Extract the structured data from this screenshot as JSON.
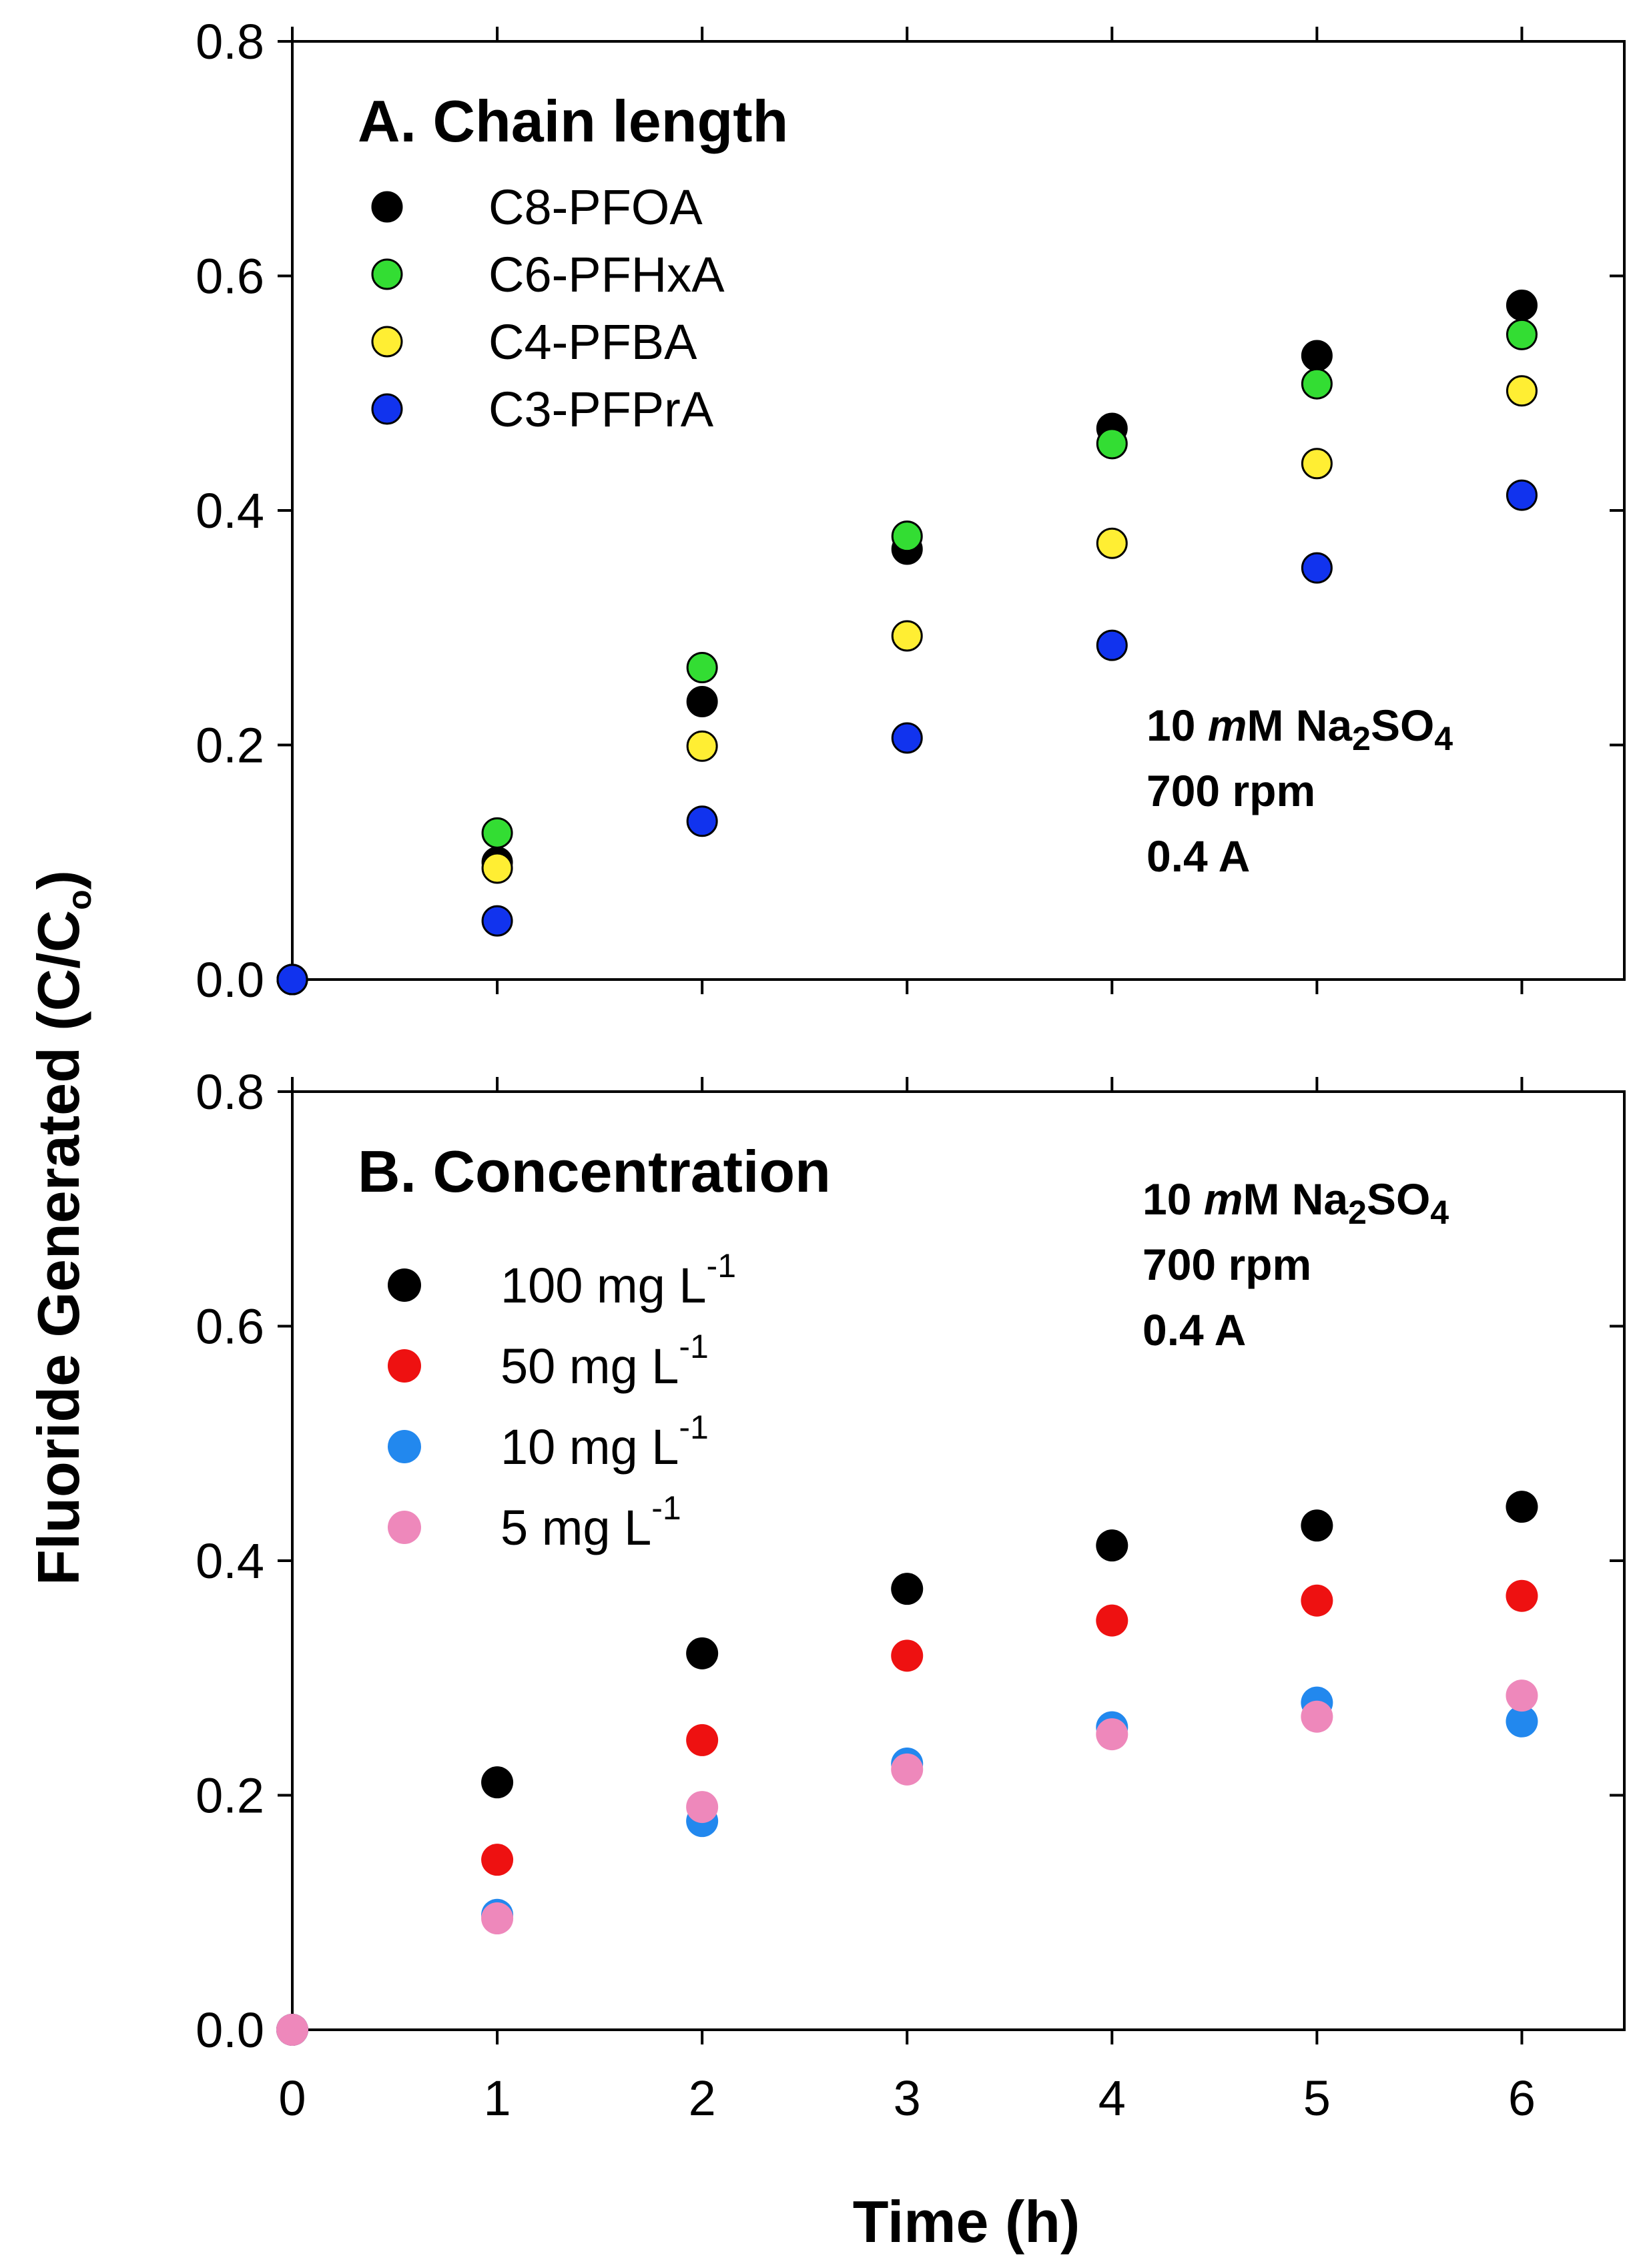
{
  "y_axis_title": "Fluoride Generated (C/C",
  "y_axis_title_sub": "o",
  "y_axis_title_close": ")",
  "x_axis_title": "Time (h)",
  "conditions": {
    "line1_pre": "10 ",
    "line1_italic": "m",
    "line1_mid": "M Na",
    "line1_sub1": "2",
    "line1_so": "SO",
    "line1_sub2": "4",
    "line2": "700 rpm",
    "line3": "0.4 A"
  },
  "chart_data": [
    {
      "type": "scatter",
      "title": "A. Chain length",
      "xlabel": "Time (h)",
      "ylabel": "Fluoride Generated (C/Co)",
      "xlim": [
        0,
        6.5
      ],
      "ylim": [
        0,
        0.8
      ],
      "xticks": [
        "0",
        "1",
        "2",
        "3",
        "4",
        "5",
        "6"
      ],
      "yticks": [
        "0.0",
        "0.2",
        "0.4",
        "0.6",
        "0.8"
      ],
      "x": [
        0,
        1,
        2,
        3,
        4,
        5,
        6
      ],
      "series": [
        {
          "name": "C8-PFOA",
          "color": "#000000",
          "values": [
            0,
            0.1,
            0.237,
            0.367,
            0.47,
            0.532,
            0.575
          ]
        },
        {
          "name": "C6-PFHxA",
          "color": "#33dd33",
          "values": [
            0,
            0.125,
            0.266,
            0.378,
            0.457,
            0.508,
            0.55
          ]
        },
        {
          "name": "C4-PFBA",
          "color": "#ffee33",
          "values": [
            0,
            0.095,
            0.199,
            0.293,
            0.372,
            0.44,
            0.502
          ]
        },
        {
          "name": "C3-PFPrA",
          "color": "#1133ee",
          "values": [
            0,
            0.05,
            0.135,
            0.206,
            0.285,
            0.351,
            0.413
          ]
        }
      ]
    },
    {
      "type": "scatter",
      "title": "B. Concentration",
      "xlabel": "Time (h)",
      "ylabel": "Fluoride Generated (C/Co)",
      "xlim": [
        0,
        6.5
      ],
      "ylim": [
        0,
        0.8
      ],
      "xticks": [
        "0",
        "1",
        "2",
        "3",
        "4",
        "5",
        "6"
      ],
      "yticks": [
        "0.0",
        "0.2",
        "0.4",
        "0.6",
        "0.8"
      ],
      "x": [
        0,
        1,
        2,
        3,
        4,
        5,
        6
      ],
      "series": [
        {
          "name": "100 mg L",
          "sup": "-1",
          "color": "#000000",
          "values": [
            0,
            0.211,
            0.321,
            0.376,
            0.413,
            0.43,
            0.446
          ]
        },
        {
          "name": "50 mg L",
          "sup": "-1",
          "color": "#ee1111",
          "values": [
            0,
            0.145,
            0.247,
            0.319,
            0.349,
            0.366,
            0.37
          ]
        },
        {
          "name": "10 mg L",
          "sup": "-1",
          "color": "#2288ee",
          "values": [
            0,
            0.098,
            0.178,
            0.227,
            0.258,
            0.279,
            0.263
          ]
        },
        {
          "name": "5 mg L",
          "sup": "-1",
          "color": "#ee88bb",
          "values": [
            0,
            0.095,
            0.19,
            0.222,
            0.252,
            0.267,
            0.285
          ]
        }
      ]
    }
  ]
}
